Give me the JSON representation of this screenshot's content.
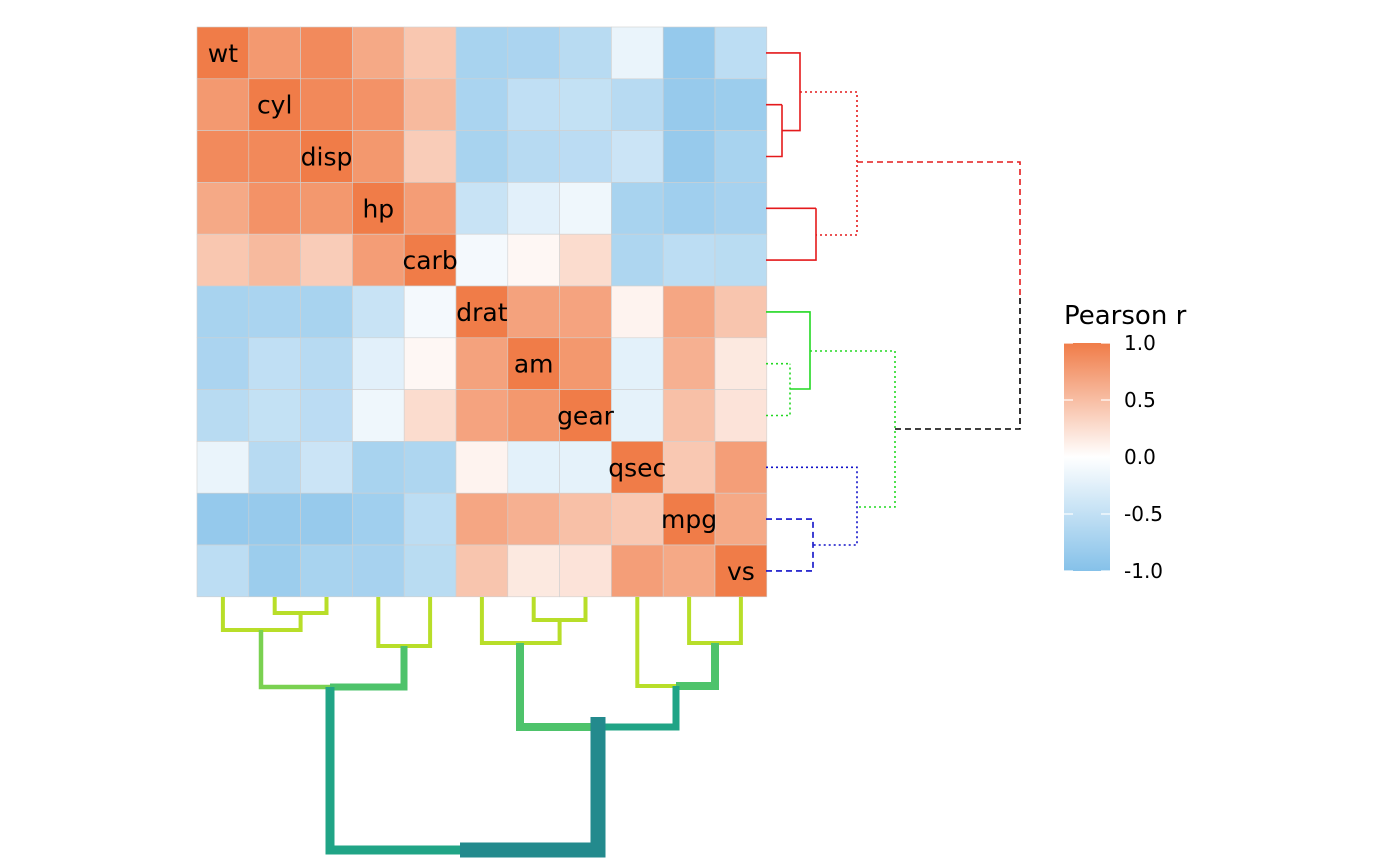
{
  "chart_data": {
    "type": "heatmap",
    "variables": [
      "wt",
      "cyl",
      "disp",
      "hp",
      "carb",
      "drat",
      "am",
      "gear",
      "qsec",
      "mpg",
      "vs"
    ],
    "matrix": [
      [
        1.0,
        0.78,
        0.89,
        0.66,
        0.43,
        -0.71,
        -0.69,
        -0.58,
        -0.17,
        -0.87,
        -0.55
      ],
      [
        0.78,
        1.0,
        0.9,
        0.83,
        0.53,
        -0.7,
        -0.52,
        -0.49,
        -0.59,
        -0.85,
        -0.81
      ],
      [
        0.89,
        0.9,
        1.0,
        0.79,
        0.39,
        -0.71,
        -0.59,
        -0.56,
        -0.43,
        -0.85,
        -0.71
      ],
      [
        0.66,
        0.83,
        0.79,
        1.0,
        0.75,
        -0.45,
        -0.24,
        -0.13,
        -0.71,
        -0.78,
        -0.72
      ],
      [
        0.43,
        0.53,
        0.39,
        0.75,
        1.0,
        -0.09,
        0.06,
        0.27,
        -0.66,
        -0.55,
        -0.57
      ],
      [
        -0.71,
        -0.7,
        -0.71,
        -0.45,
        -0.09,
        1.0,
        0.71,
        0.7,
        0.09,
        0.68,
        0.44
      ],
      [
        -0.69,
        -0.52,
        -0.59,
        -0.24,
        0.06,
        0.71,
        1.0,
        0.79,
        -0.23,
        0.6,
        0.17
      ],
      [
        -0.58,
        -0.49,
        -0.56,
        -0.13,
        0.27,
        0.7,
        0.79,
        1.0,
        -0.21,
        0.48,
        0.21
      ],
      [
        -0.17,
        -0.59,
        -0.43,
        -0.71,
        -0.66,
        0.09,
        -0.23,
        -0.21,
        1.0,
        0.42,
        0.74
      ],
      [
        -0.87,
        -0.85,
        -0.85,
        -0.78,
        -0.55,
        0.68,
        0.6,
        0.48,
        0.42,
        1.0,
        0.66
      ],
      [
        -0.55,
        -0.81,
        -0.71,
        -0.72,
        -0.57,
        0.44,
        0.17,
        0.21,
        0.74,
        0.66,
        1.0
      ]
    ],
    "color_scale": {
      "low": "#85C1E9",
      "mid": "#FFFFFF",
      "high": "#F07C48",
      "limits": [
        -1.0,
        1.0
      ]
    },
    "legend": {
      "title": "Pearson r",
      "ticks": [
        "1.0",
        "0.5",
        "0.0",
        "-0.5",
        "-1.0"
      ],
      "tick_values": [
        1.0,
        0.5,
        0.0,
        -0.5,
        -1.0
      ],
      "placement": "right"
    },
    "row_dendrogram": {
      "side": "right",
      "clusters": [
        {
          "members": [
            "wt",
            "cyl",
            "disp",
            "hp",
            "carb"
          ],
          "color": "#E41A1C"
        },
        {
          "members": [
            "drat",
            "am",
            "gear"
          ],
          "color": "#22D822"
        },
        {
          "members": [
            "qsec",
            "mpg",
            "vs"
          ],
          "color": "#1010C8"
        }
      ],
      "root_color": "#000000"
    },
    "column_dendrogram": {
      "side": "bottom",
      "colors": [
        "#B8DE29",
        "#7AD151",
        "#4EC36B",
        "#20A486",
        "#238A8D",
        "#297B8E"
      ]
    }
  }
}
